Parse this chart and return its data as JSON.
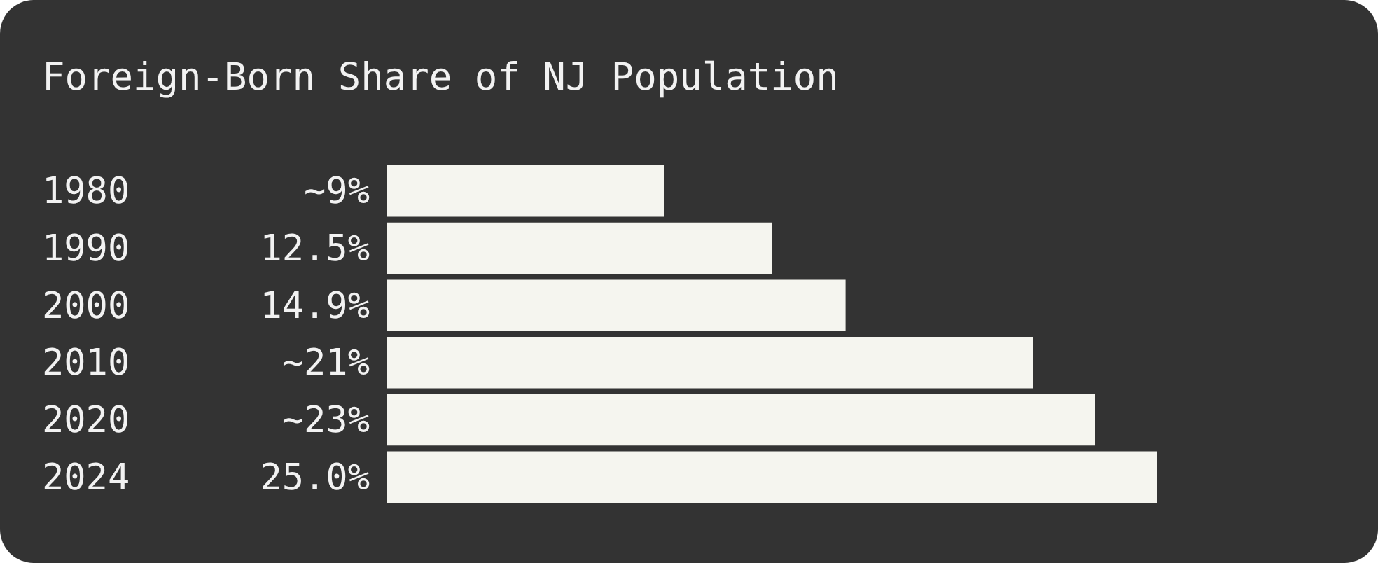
{
  "chart_data": {
    "type": "bar",
    "orientation": "horizontal",
    "title": "Foreign-Born Share of NJ Population",
    "categories": [
      "1980",
      "1990",
      "2000",
      "2010",
      "2020",
      "2024"
    ],
    "values": [
      9,
      12.5,
      14.9,
      21,
      23,
      25
    ],
    "value_labels": [
      "~9%",
      "12.5%",
      "14.9%",
      "~21%",
      "~23%",
      "25.0%"
    ],
    "color": "#f5f5ef"
  }
}
